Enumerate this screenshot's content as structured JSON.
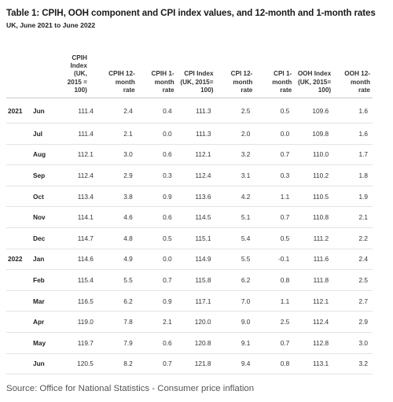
{
  "title": "Table 1: CPIH, OOH component and CPI index values, and 12-month and 1-month rates",
  "subtitle": "UK, June 2021 to June 2022",
  "headers": [
    [
      "CPIH",
      "Index",
      "(UK,",
      "2015 =",
      "100)"
    ],
    [
      "CPIH 12-",
      "month",
      "rate"
    ],
    [
      "CPIH 1-",
      "month",
      "rate"
    ],
    [
      "CPI Index",
      "(UK, 2015=",
      "100)"
    ],
    [
      "CPI 12-",
      "month",
      "rate"
    ],
    [
      "CPI 1-",
      "month",
      "rate"
    ],
    [
      "OOH Index",
      "(UK, 2015=",
      "100)"
    ],
    [
      "OOH 12-",
      "month",
      "rate"
    ]
  ],
  "rows": [
    {
      "year": "2021",
      "month": "Jun",
      "values": [
        "111.4",
        "2.4",
        "0.4",
        "111.3",
        "2.5",
        "0.5",
        "109.6",
        "1.6"
      ]
    },
    {
      "year": "",
      "month": "Jul",
      "values": [
        "111.4",
        "2.1",
        "0.0",
        "111.3",
        "2.0",
        "0.0",
        "109.8",
        "1.6"
      ]
    },
    {
      "year": "",
      "month": "Aug",
      "values": [
        "112.1",
        "3.0",
        "0.6",
        "112.1",
        "3.2",
        "0.7",
        "110.0",
        "1.7"
      ]
    },
    {
      "year": "",
      "month": "Sep",
      "values": [
        "112.4",
        "2.9",
        "0.3",
        "112.4",
        "3.1",
        "0.3",
        "110.2",
        "1.8"
      ]
    },
    {
      "year": "",
      "month": "Oct",
      "values": [
        "113.4",
        "3.8",
        "0.9",
        "113.6",
        "4.2",
        "1.1",
        "110.5",
        "1.9"
      ]
    },
    {
      "year": "",
      "month": "Nov",
      "values": [
        "114.1",
        "4.6",
        "0.6",
        "114.5",
        "5.1",
        "0.7",
        "110.8",
        "2.1"
      ]
    },
    {
      "year": "",
      "month": "Dec",
      "values": [
        "114.7",
        "4.8",
        "0.5",
        "115.1",
        "5.4",
        "0.5",
        "111.2",
        "2.2"
      ]
    },
    {
      "year": "2022",
      "month": "Jan",
      "values": [
        "114.6",
        "4.9",
        "0.0",
        "114.9",
        "5.5",
        "-0.1",
        "111.6",
        "2.4"
      ]
    },
    {
      "year": "",
      "month": "Feb",
      "values": [
        "115.4",
        "5.5",
        "0.7",
        "115.8",
        "6.2",
        "0.8",
        "111.8",
        "2.5"
      ]
    },
    {
      "year": "",
      "month": "Mar",
      "values": [
        "116.5",
        "6.2",
        "0.9",
        "117.1",
        "7.0",
        "1.1",
        "112.1",
        "2.7"
      ]
    },
    {
      "year": "",
      "month": "Apr",
      "values": [
        "119.0",
        "7.8",
        "2.1",
        "120.0",
        "9.0",
        "2.5",
        "112.4",
        "2.9"
      ]
    },
    {
      "year": "",
      "month": "May",
      "values": [
        "119.7",
        "7.9",
        "0.6",
        "120.8",
        "9.1",
        "0.7",
        "112.8",
        "3.0"
      ]
    },
    {
      "year": "",
      "month": "Jun",
      "values": [
        "120.5",
        "8.2",
        "0.7",
        "121.8",
        "9.4",
        "0.8",
        "113.1",
        "3.2"
      ]
    }
  ],
  "source": "Source: Office for National Statistics - Consumer price inflation"
}
